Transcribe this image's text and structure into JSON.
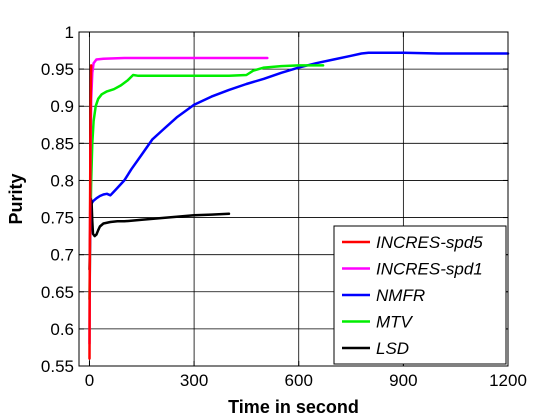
{
  "chart_data": {
    "type": "line",
    "title": "",
    "xlabel": "Time in second",
    "ylabel": "Purity",
    "xlim": [
      -30,
      1200
    ],
    "ylim": [
      0.55,
      1.0
    ],
    "xticks": [
      0,
      300,
      600,
      900,
      1200
    ],
    "xtick_labels": [
      "0",
      "300",
      "600",
      "900",
      "1200"
    ],
    "yticks": [
      0.55,
      0.6,
      0.65,
      0.7,
      0.75,
      0.8,
      0.85,
      0.9,
      0.95,
      1.0
    ],
    "ytick_labels": [
      "0.55",
      "0.6",
      "0.65",
      "0.7",
      "0.75",
      "0.8",
      "0.85",
      "0.9",
      "0.95",
      "1"
    ],
    "grid": true,
    "legend_position": "bottom-right",
    "series": [
      {
        "name": "INCRES-spd5",
        "color": "#ff0000",
        "x": [
          0,
          0.5,
          1,
          2,
          3,
          4,
          5
        ],
        "y": [
          0.56,
          0.62,
          0.7,
          0.8,
          0.88,
          0.93,
          0.955
        ]
      },
      {
        "name": "INCRES-spd1",
        "color": "#ff00ff",
        "x": [
          0,
          1,
          2,
          3,
          5,
          8,
          12,
          20,
          40,
          100,
          200,
          300,
          400,
          510
        ],
        "y": [
          0.58,
          0.67,
          0.76,
          0.84,
          0.91,
          0.945,
          0.958,
          0.963,
          0.964,
          0.965,
          0.965,
          0.965,
          0.965,
          0.965
        ]
      },
      {
        "name": "NMFR",
        "color": "#0000ff",
        "x": [
          2,
          5,
          10,
          20,
          30,
          40,
          50,
          60,
          70,
          80,
          100,
          120,
          150,
          180,
          210,
          250,
          300,
          350,
          400,
          450,
          500,
          550,
          600,
          650,
          700,
          750,
          780,
          800,
          850,
          900,
          1000,
          1100,
          1200
        ],
        "y": [
          0.755,
          0.768,
          0.772,
          0.776,
          0.779,
          0.781,
          0.782,
          0.78,
          0.785,
          0.79,
          0.8,
          0.815,
          0.835,
          0.855,
          0.868,
          0.885,
          0.902,
          0.913,
          0.922,
          0.93,
          0.937,
          0.945,
          0.952,
          0.958,
          0.963,
          0.968,
          0.971,
          0.972,
          0.972,
          0.972,
          0.971,
          0.971,
          0.971
        ]
      },
      {
        "name": "MTV",
        "color": "#00ee00",
        "x": [
          0,
          2,
          5,
          8,
          12,
          18,
          25,
          35,
          50,
          70,
          90,
          110,
          125,
          140,
          200,
          300,
          400,
          450,
          470,
          500,
          550,
          600,
          670
        ],
        "y": [
          0.64,
          0.72,
          0.8,
          0.85,
          0.88,
          0.9,
          0.91,
          0.916,
          0.92,
          0.923,
          0.928,
          0.935,
          0.942,
          0.941,
          0.941,
          0.941,
          0.941,
          0.942,
          0.948,
          0.952,
          0.954,
          0.955,
          0.955
        ]
      },
      {
        "name": "LSD",
        "color": "#000000",
        "x": [
          0,
          2,
          4,
          6,
          8,
          10,
          15,
          20,
          25,
          30,
          40,
          60,
          80,
          100,
          150,
          200,
          250,
          300,
          350,
          400
        ],
        "y": [
          0.68,
          0.73,
          0.775,
          0.77,
          0.745,
          0.728,
          0.725,
          0.727,
          0.733,
          0.738,
          0.742,
          0.744,
          0.745,
          0.745,
          0.747,
          0.749,
          0.751,
          0.753,
          0.754,
          0.755
        ]
      }
    ]
  }
}
